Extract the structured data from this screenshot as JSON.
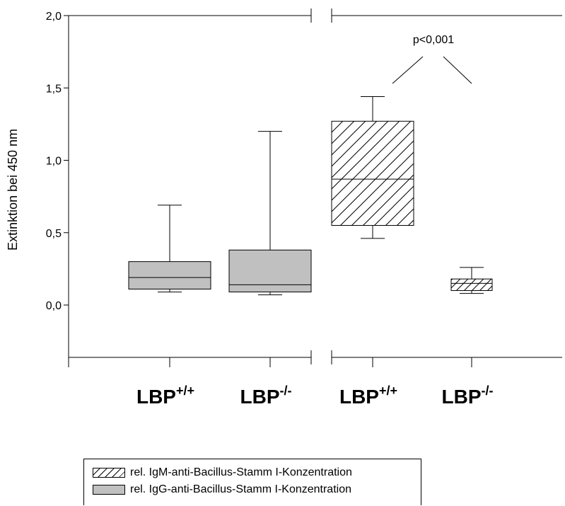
{
  "chart_data": {
    "type": "box",
    "ylabel": "Extinktion bei 450 nm",
    "ylim": [
      -0.37,
      2.0
    ],
    "y_ticks": [
      {
        "value": 0.0,
        "label": "0,0"
      },
      {
        "value": 0.5,
        "label": "0,5"
      },
      {
        "value": 1.0,
        "label": "1,0"
      },
      {
        "value": 1.5,
        "label": "1,5"
      },
      {
        "value": 2.0,
        "label": "2,0"
      }
    ],
    "axis_break": "between groups",
    "categories": [
      {
        "base": "LBP",
        "sup": "+/+"
      },
      {
        "base": "LBP",
        "sup": "-/-"
      },
      {
        "base": "LBP",
        "sup": "+/+"
      },
      {
        "base": "LBP",
        "sup": "-/-"
      }
    ],
    "boxes": [
      {
        "series": "igg",
        "category_index": 0,
        "whisker_low": 0.09,
        "q1": 0.11,
        "median": 0.19,
        "q3": 0.3,
        "whisker_high": 0.69
      },
      {
        "series": "igg",
        "category_index": 1,
        "whisker_low": 0.07,
        "q1": 0.09,
        "median": 0.14,
        "q3": 0.38,
        "whisker_high": 1.2
      },
      {
        "series": "igm",
        "category_index": 2,
        "whisker_low": 0.46,
        "q1": 0.55,
        "median": 0.87,
        "q3": 1.27,
        "whisker_high": 1.44
      },
      {
        "series": "igm",
        "category_index": 3,
        "whisker_low": 0.08,
        "q1": 0.1,
        "median": 0.15,
        "q3": 0.18,
        "whisker_high": 0.26
      }
    ],
    "series": [
      {
        "key": "igm",
        "name": "rel. IgM-anti-Bacillus-Stamm I-Konzentration",
        "fill": "hatched"
      },
      {
        "key": "igg",
        "name": "rel. IgG-anti-Bacillus-Stamm I-Konzentration",
        "fill": "#c0c0c0"
      }
    ],
    "annotation": {
      "text": "p<0,001",
      "between_categories": [
        2,
        3
      ]
    },
    "legend_position": "bottom-left"
  }
}
